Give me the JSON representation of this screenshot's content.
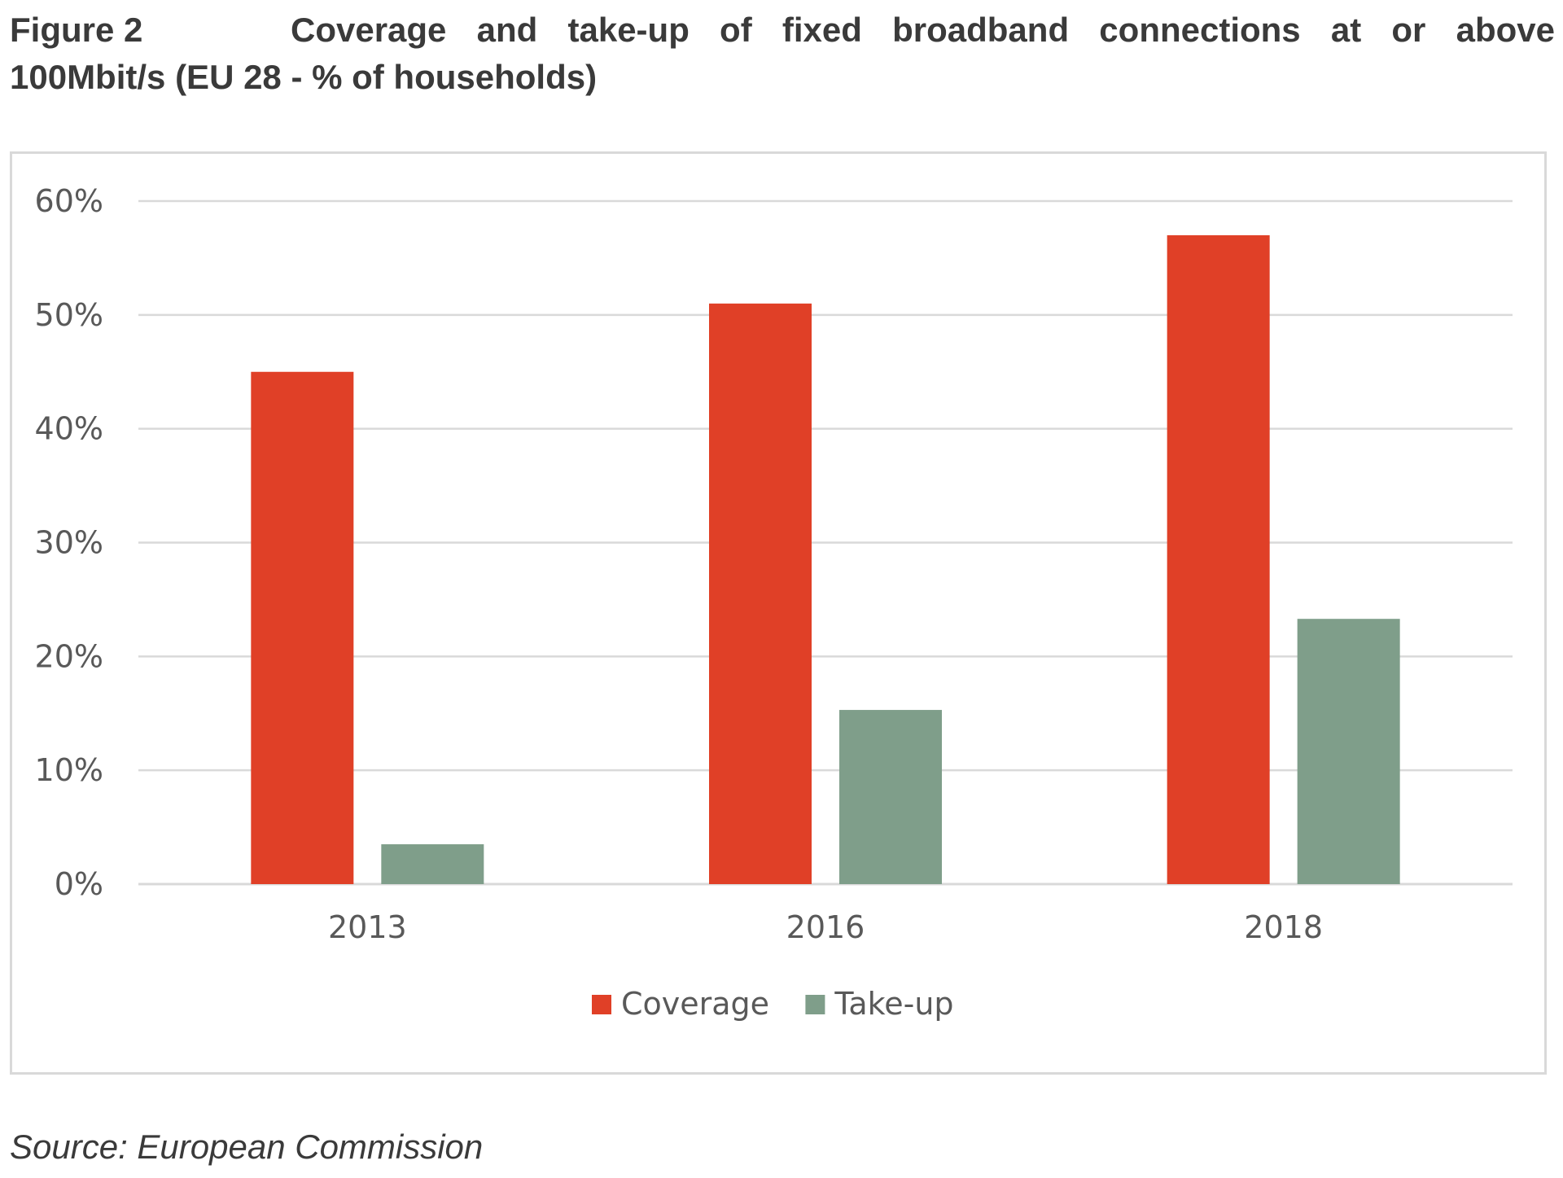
{
  "header": {
    "figure_label": "Figure 2",
    "title_line1": "Coverage and take-up of fixed broadband connections at or above",
    "title_line2": "100Mbit/s (EU 28 - % of households)"
  },
  "source": "Source: European Commission",
  "colors": {
    "coverage": "#e04027",
    "takeup": "#7f9e8a",
    "gridline": "#d9d9d9",
    "axis_text": "#595959",
    "frame": "#d9d9d9"
  },
  "chart_data": {
    "type": "bar",
    "title": "",
    "xlabel": "",
    "ylabel": "",
    "categories": [
      "2013",
      "2016",
      "2018"
    ],
    "series": [
      {
        "name": "Coverage",
        "values": [
          45,
          51,
          57
        ]
      },
      {
        "name": "Take-up",
        "values": [
          3.5,
          15.3,
          23.3
        ]
      }
    ],
    "ylim": [
      0,
      60
    ],
    "yticks": [
      0,
      10,
      20,
      30,
      40,
      50,
      60
    ],
    "ytick_labels": [
      "0%",
      "10%",
      "20%",
      "30%",
      "40%",
      "50%",
      "60%"
    ],
    "grid": true,
    "legend_position": "bottom-center"
  }
}
